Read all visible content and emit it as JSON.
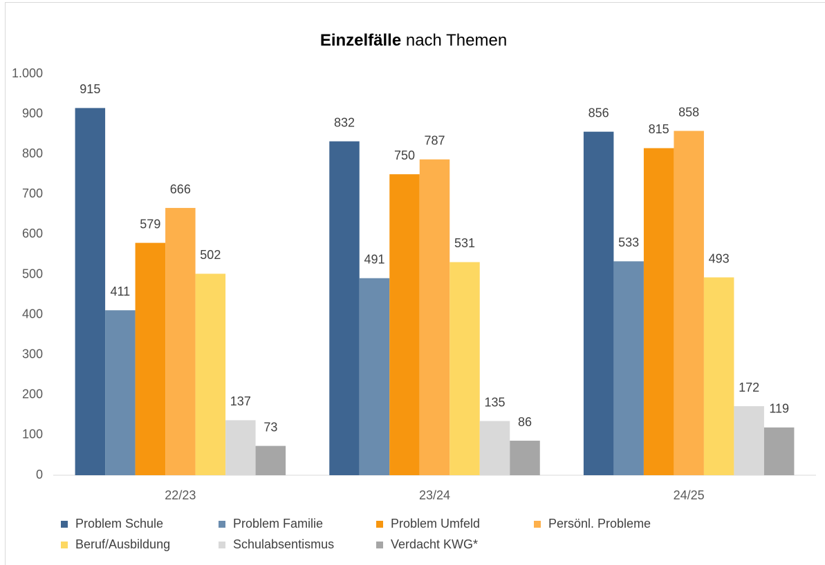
{
  "chart_data": {
    "type": "bar",
    "title": {
      "bold": "Einzelfälle",
      "rest": "nach Themen"
    },
    "categories": [
      "22/23",
      "23/24",
      "24/25"
    ],
    "series": [
      {
        "name": "Problem Schule",
        "color": "#3e6591",
        "values": [
          915,
          832,
          856
        ]
      },
      {
        "name": "Problem Familie",
        "color": "#6a8cae",
        "values": [
          411,
          491,
          533
        ]
      },
      {
        "name": "Problem Umfeld",
        "color": "#f7960f",
        "values": [
          579,
          750,
          815
        ]
      },
      {
        "name": "Persönl. Probleme",
        "color": "#fdb04b",
        "values": [
          666,
          787,
          858
        ]
      },
      {
        "name": "Beruf/Ausbildung",
        "color": "#fdd862",
        "values": [
          502,
          531,
          493
        ]
      },
      {
        "name": "Schulabsentismus",
        "color": "#d9d9d9",
        "values": [
          137,
          135,
          172
        ]
      },
      {
        "name": "Verdacht KWG*",
        "color": "#a6a6a6",
        "values": [
          73,
          86,
          119
        ]
      }
    ],
    "ylim": [
      0,
      1000
    ],
    "yticks": [
      0,
      100,
      200,
      300,
      400,
      500,
      600,
      700,
      800,
      900,
      {
        "value": 1000,
        "label": "1.000"
      }
    ],
    "legend": "bottom"
  }
}
